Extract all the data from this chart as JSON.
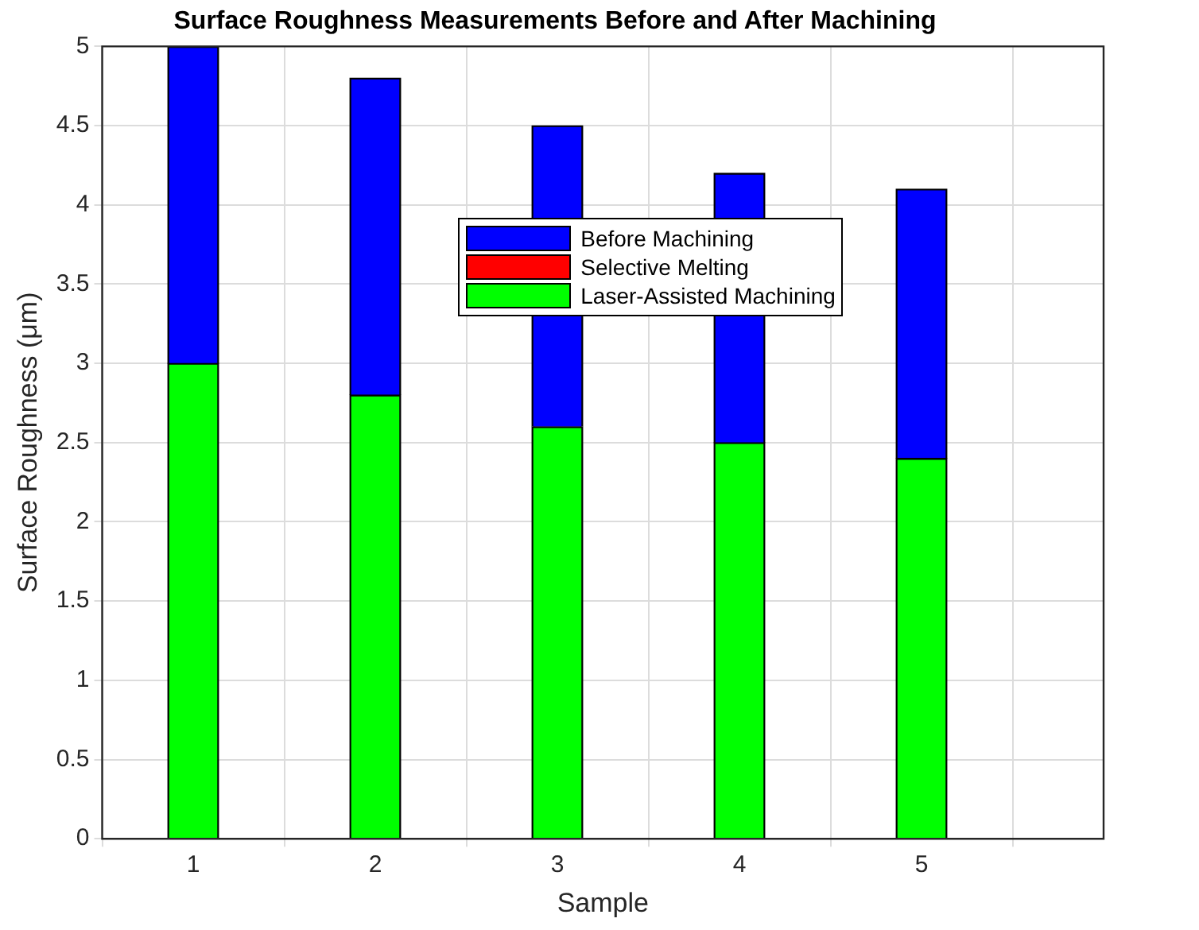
{
  "chart_data": {
    "type": "bar",
    "title": "Surface Roughness Measurements Before and After Machining",
    "xlabel": "Sample",
    "ylabel": "Surface Roughness (μm)",
    "x": [
      1,
      2,
      3,
      4,
      5
    ],
    "xlim": [
      0.5,
      6
    ],
    "xticks": [
      1,
      2,
      3,
      4,
      5
    ],
    "ylim": [
      0,
      5
    ],
    "yticks": [
      0,
      0.5,
      1,
      1.5,
      2,
      2.5,
      3,
      3.5,
      4,
      4.5,
      5
    ],
    "stacked": true,
    "grid": true,
    "legend": "top",
    "series": [
      {
        "name": "Laser-Assisted Machining",
        "color": "#00ff00",
        "values": [
          3,
          2.8,
          2.6,
          2.5,
          2.4
        ]
      },
      {
        "name": "Selective Melting",
        "color": "#ff0000",
        "values": [
          null,
          null,
          null,
          null,
          null
        ]
      },
      {
        "name": "Before Machining",
        "color": "#0000ff",
        "values": [
          2,
          2,
          1.9,
          1.7,
          1.7
        ]
      }
    ]
  }
}
